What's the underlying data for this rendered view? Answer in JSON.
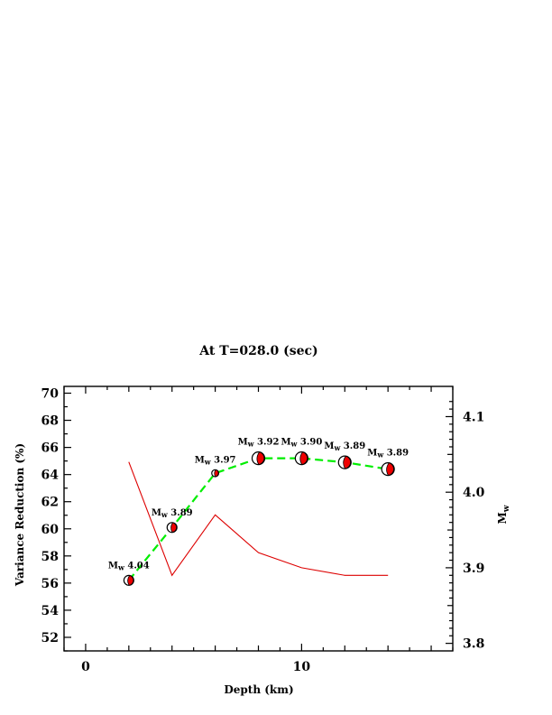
{
  "chart_data": {
    "type": "line",
    "title": "At T=028.0 (sec)",
    "xlabel": "Depth (km)",
    "ylabel_left": "Variance Reduction (%)",
    "ylabel_right": "Mw",
    "xlim": [
      -1,
      17
    ],
    "ylim_left": [
      51,
      70.5
    ],
    "ylim_right": [
      3.79,
      4.14
    ],
    "x_ticks": [
      0,
      10
    ],
    "y_ticks_left": [
      52,
      54,
      56,
      58,
      60,
      62,
      64,
      66,
      68,
      70
    ],
    "y_ticks_right": [
      3.8,
      3.9,
      4.0,
      4.1
    ],
    "grid": false,
    "series": [
      {
        "axis": "left",
        "color": "#00ee00",
        "style": "dashed",
        "x": [
          2,
          4,
          6,
          8,
          10,
          12,
          14
        ],
        "y": [
          56.2,
          60.1,
          64.1,
          65.2,
          65.2,
          64.9,
          64.4
        ]
      },
      {
        "axis": "right",
        "color": "#dd0000",
        "style": "solid",
        "x": [
          2,
          4,
          6,
          8,
          10,
          12,
          14
        ],
        "y": [
          4.04,
          3.89,
          3.97,
          3.92,
          3.9,
          3.89,
          3.89
        ]
      }
    ],
    "annotations": [
      {
        "x": 2,
        "y": 56.2,
        "label": "4.04"
      },
      {
        "x": 4,
        "y": 60.1,
        "label": "3.89"
      },
      {
        "x": 6,
        "y": 64.1,
        "label": "3.97"
      },
      {
        "x": 8,
        "y": 65.2,
        "label": "3.92"
      },
      {
        "x": 10,
        "y": 65.2,
        "label": "3.90"
      },
      {
        "x": 12,
        "y": 64.9,
        "label": "3.89"
      },
      {
        "x": 14,
        "y": 64.4,
        "label": "3.89"
      }
    ],
    "marker_radius_rel": [
      0.78,
      0.78,
      0.55,
      1.0,
      1.0,
      1.0,
      1.0
    ],
    "marker_fill": "#ee0000"
  }
}
